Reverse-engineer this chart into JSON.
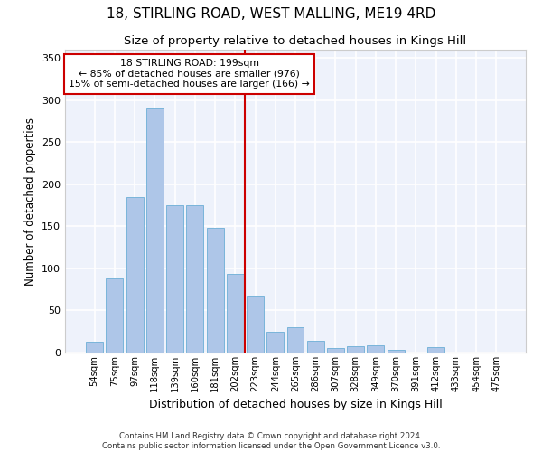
{
  "title": "18, STIRLING ROAD, WEST MALLING, ME19 4RD",
  "subtitle": "Size of property relative to detached houses in Kings Hill",
  "xlabel": "Distribution of detached houses by size in Kings Hill",
  "ylabel": "Number of detached properties",
  "categories": [
    "54sqm",
    "75sqm",
    "97sqm",
    "118sqm",
    "139sqm",
    "160sqm",
    "181sqm",
    "202sqm",
    "223sqm",
    "244sqm",
    "265sqm",
    "286sqm",
    "307sqm",
    "328sqm",
    "349sqm",
    "370sqm",
    "391sqm",
    "412sqm",
    "433sqm",
    "454sqm",
    "475sqm"
  ],
  "bar_heights": [
    13,
    88,
    185,
    290,
    175,
    175,
    148,
    93,
    68,
    25,
    30,
    14,
    5,
    8,
    9,
    3,
    0,
    6,
    0,
    0,
    0
  ],
  "bar_color": "#aec6e8",
  "bar_edge_color": "#6baed6",
  "vline_x_index": 7.5,
  "vline_color": "#cc0000",
  "annotation_text": "18 STIRLING ROAD: 199sqm\n← 85% of detached houses are smaller (976)\n15% of semi-detached houses are larger (166) →",
  "annotation_box_color": "#cc0000",
  "ylim": [
    0,
    360
  ],
  "yticks": [
    0,
    50,
    100,
    150,
    200,
    250,
    300,
    350
  ],
  "background_color": "#eef2fb",
  "grid_color": "#ffffff",
  "footer_line1": "Contains HM Land Registry data © Crown copyright and database right 2024.",
  "footer_line2": "Contains public sector information licensed under the Open Government Licence v3.0."
}
